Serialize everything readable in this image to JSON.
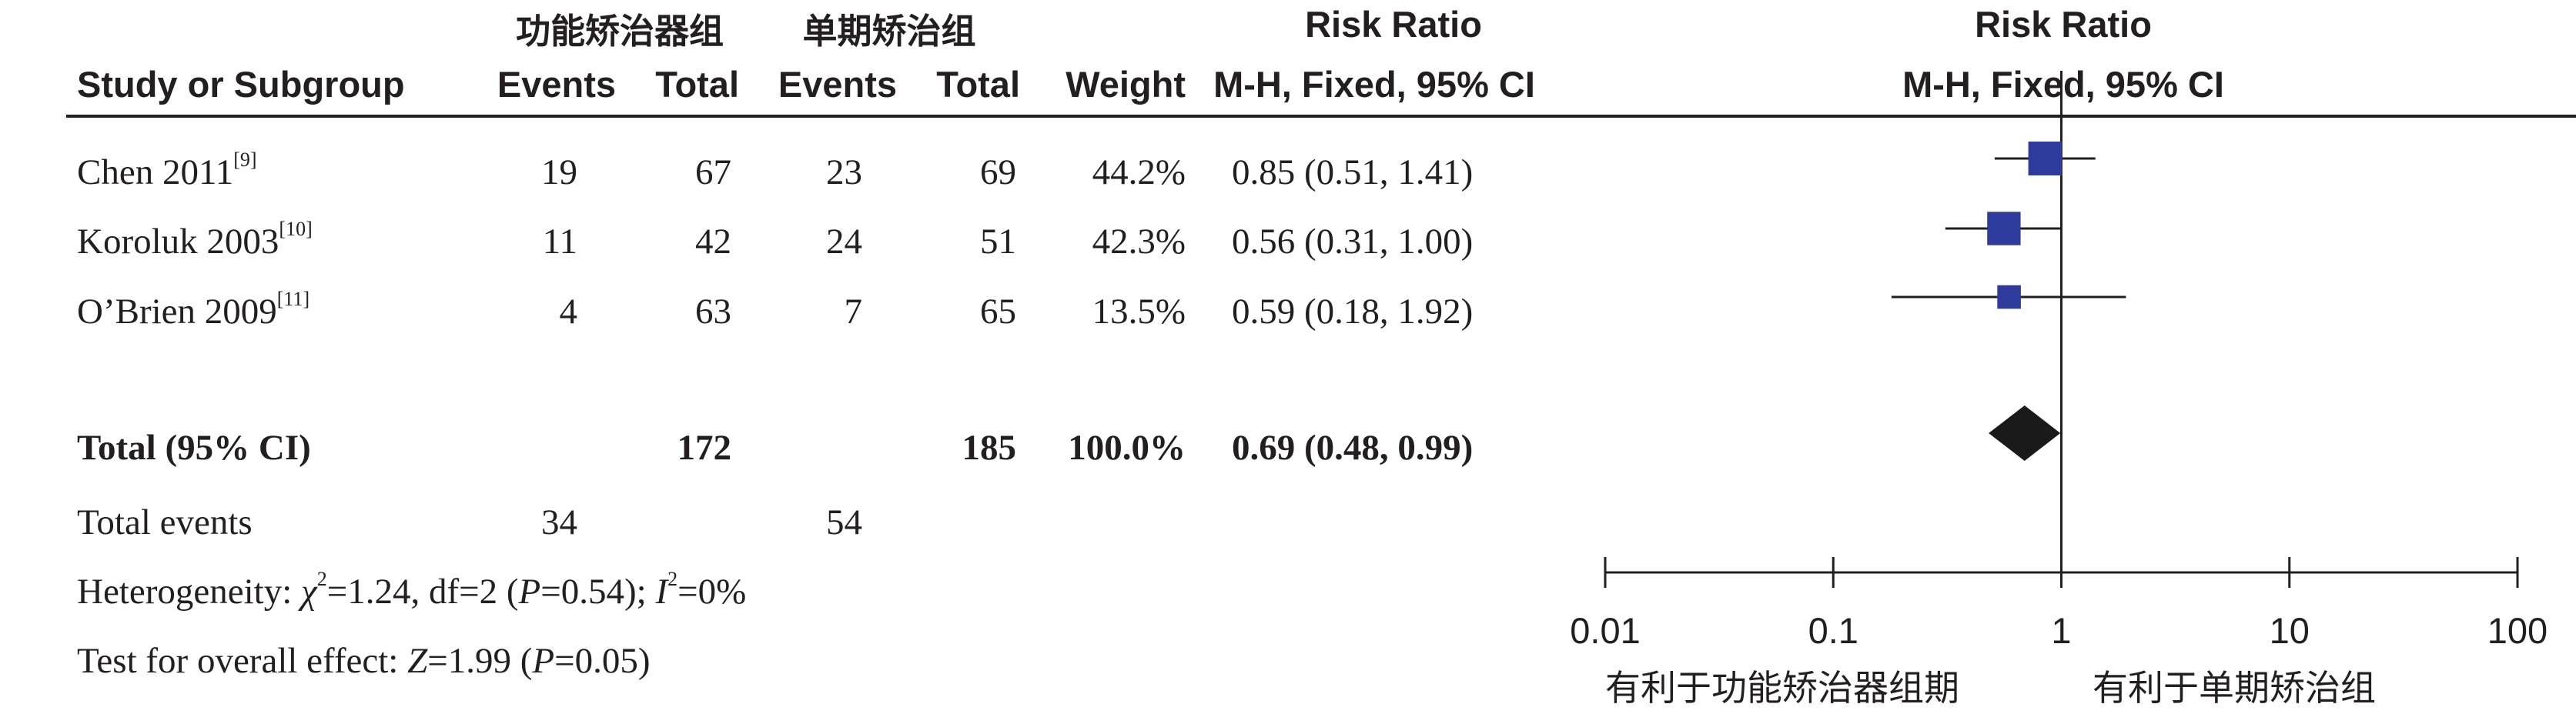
{
  "header": {
    "group1": "功能矫治器组",
    "group2": "单期矫治组",
    "rr_title_left": "Risk Ratio",
    "rr_title_right": "Risk Ratio",
    "col_study": "Study or Subgroup",
    "col_events1": "Events",
    "col_total1": "Total",
    "col_events2": "Events",
    "col_total2": "Total",
    "col_weight": "Weight",
    "col_mh_left": "M-H, Fixed, 95% CI",
    "col_mh_right": "M-H, Fixed, 95% CI"
  },
  "studies": [
    {
      "name": "Chen 2011",
      "ref": "[9]",
      "e1": "19",
      "t1": "67",
      "e2": "23",
      "t2": "69",
      "weight": "44.2%",
      "ci": "0.85 (0.51, 1.41)"
    },
    {
      "name": "Koroluk 2003",
      "ref": "[10]",
      "e1": "11",
      "t1": "42",
      "e2": "24",
      "t2": "51",
      "weight": "42.3%",
      "ci": "0.56 (0.31, 1.00)"
    },
    {
      "name": "O’Brien 2009",
      "ref": "[11]",
      "e1": "4",
      "t1": "63",
      "e2": "7",
      "t2": "65",
      "weight": "13.5%",
      "ci": "0.59 (0.18, 1.92)"
    }
  ],
  "total": {
    "label": "Total (95% CI)",
    "t1": "172",
    "t2": "185",
    "weight": "100.0%",
    "ci": "0.69 (0.48, 0.99)"
  },
  "total_events": {
    "label": "Total events",
    "e1": "34",
    "e2": "54"
  },
  "heterogeneity": {
    "prefix": "Heterogeneity: ",
    "chi": "χ",
    "mid": "=1.24, df=2 (",
    "p": "P",
    "mid2": "=0.54); ",
    "i": "I",
    "end": "=0%"
  },
  "overall": {
    "prefix": "Test for overall effect: ",
    "z": "Z",
    "mid": "=1.99 (",
    "p": "P",
    "end": "=0.05)"
  },
  "axis": {
    "left_label": "有利于功能矫治器组期",
    "right_label": "有利于单期矫治组"
  },
  "chart_data": {
    "type": "forest",
    "scale": "log",
    "xlim": [
      0.01,
      100
    ],
    "ticks": [
      0.01,
      0.1,
      1,
      10,
      100
    ],
    "tick_labels": [
      "0.01",
      "0.1",
      "1",
      "10",
      "100"
    ],
    "reference_line": 1,
    "studies": [
      {
        "name": "Chen 2011",
        "rr": 0.85,
        "lo": 0.51,
        "hi": 1.41,
        "weight": 44.2
      },
      {
        "name": "Koroluk 2003",
        "rr": 0.56,
        "lo": 0.31,
        "hi": 1.0,
        "weight": 42.3
      },
      {
        "name": "O’Brien 2009",
        "rr": 0.59,
        "lo": 0.18,
        "hi": 1.92,
        "weight": 13.5
      }
    ],
    "pooled": {
      "rr": 0.69,
      "lo": 0.48,
      "hi": 0.99
    },
    "colors": {
      "square": "#2e3a9c",
      "diamond": "#1a1a1a",
      "line": "#231f20"
    }
  }
}
